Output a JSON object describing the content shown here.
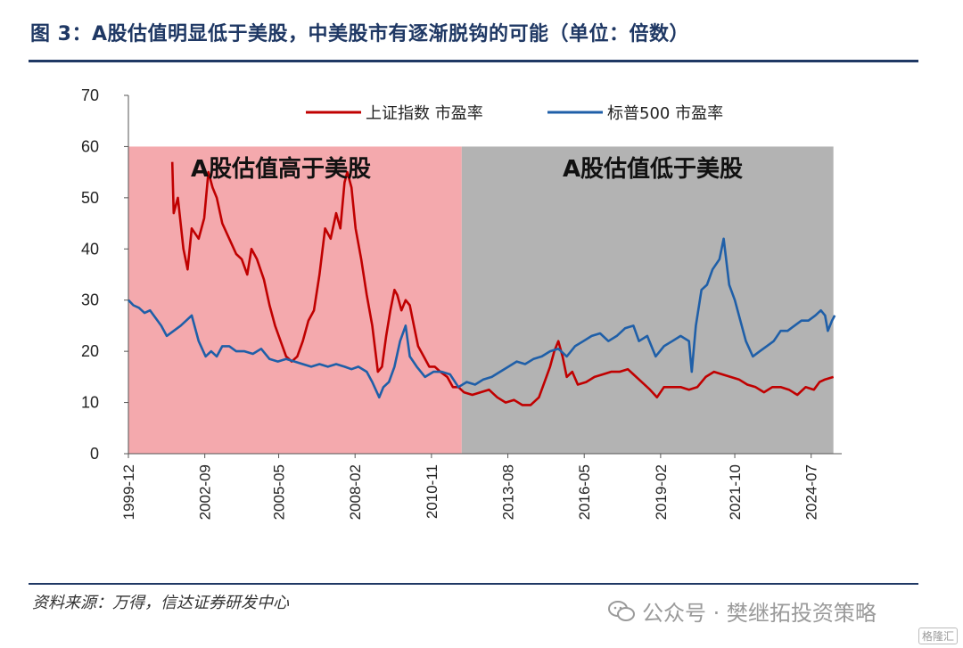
{
  "header": {
    "title": "图 3：A股估值明显低于美股，中美股市有逐渐脱钩的可能（单位：倍数）"
  },
  "footer": {
    "source": "资料来源：万得，信达证券研发中心",
    "watermark": "公众号 · 樊继拓投资策略",
    "badge": "格隆汇"
  },
  "colors": {
    "shanghai": "#c00000",
    "sp500": "#1f5fa8",
    "region_high": "#f4a9ad",
    "region_low": "#b3b3b3",
    "brand": "#1f3864"
  },
  "chart_data": {
    "type": "line",
    "ylim": [
      0,
      70
    ],
    "y_ticks": [
      "0",
      "10",
      "20",
      "30",
      "40",
      "50",
      "60",
      "70"
    ],
    "x_range": [
      1999.92,
      2025.6
    ],
    "x_ticks": [
      {
        "label": "1999-12",
        "x": 1999.92
      },
      {
        "label": "2002-09",
        "x": 2002.67
      },
      {
        "label": "2005-05",
        "x": 2005.33
      },
      {
        "label": "2008-02",
        "x": 2008.08
      },
      {
        "label": "2010-11",
        "x": 2010.83
      },
      {
        "label": "2013-08",
        "x": 2013.58
      },
      {
        "label": "2016-05",
        "x": 2016.33
      },
      {
        "label": "2019-02",
        "x": 2019.08
      },
      {
        "label": "2021-10",
        "x": 2021.75
      },
      {
        "label": "2024-07",
        "x": 2024.5
      }
    ],
    "regions": [
      {
        "label": "A股估值高于美股",
        "x_start": 1999.92,
        "x_end": 2011.92,
        "y_top": 60
      },
      {
        "label": "A股估值低于美股",
        "x_start": 2011.92,
        "x_end": 2025.3,
        "y_top": 60
      }
    ],
    "series": [
      {
        "name": "上证指数 市盈率",
        "color_key": "shanghai",
        "points": [
          [
            2001.5,
            57
          ],
          [
            2001.55,
            47
          ],
          [
            2001.7,
            50
          ],
          [
            2001.9,
            40
          ],
          [
            2002.05,
            36
          ],
          [
            2002.2,
            44
          ],
          [
            2002.45,
            42
          ],
          [
            2002.65,
            46
          ],
          [
            2002.8,
            55
          ],
          [
            2002.95,
            52
          ],
          [
            2003.1,
            50
          ],
          [
            2003.3,
            45
          ],
          [
            2003.55,
            42
          ],
          [
            2003.8,
            39
          ],
          [
            2004.0,
            38
          ],
          [
            2004.2,
            35
          ],
          [
            2004.35,
            40
          ],
          [
            2004.55,
            38
          ],
          [
            2004.8,
            34
          ],
          [
            2005.0,
            29
          ],
          [
            2005.2,
            25
          ],
          [
            2005.4,
            22
          ],
          [
            2005.6,
            19
          ],
          [
            2005.8,
            18
          ],
          [
            2006.0,
            19
          ],
          [
            2006.2,
            22
          ],
          [
            2006.4,
            26
          ],
          [
            2006.6,
            28
          ],
          [
            2006.8,
            35
          ],
          [
            2007.0,
            44
          ],
          [
            2007.2,
            42
          ],
          [
            2007.4,
            47
          ],
          [
            2007.55,
            44
          ],
          [
            2007.7,
            53
          ],
          [
            2007.8,
            55
          ],
          [
            2007.95,
            52
          ],
          [
            2008.1,
            44
          ],
          [
            2008.3,
            38
          ],
          [
            2008.5,
            31
          ],
          [
            2008.7,
            25
          ],
          [
            2008.9,
            16
          ],
          [
            2009.05,
            17
          ],
          [
            2009.2,
            23
          ],
          [
            2009.35,
            28
          ],
          [
            2009.5,
            32
          ],
          [
            2009.6,
            31
          ],
          [
            2009.75,
            28
          ],
          [
            2009.9,
            30
          ],
          [
            2010.05,
            29
          ],
          [
            2010.2,
            25
          ],
          [
            2010.35,
            21
          ],
          [
            2010.55,
            19
          ],
          [
            2010.75,
            17
          ],
          [
            2010.95,
            17
          ],
          [
            2011.15,
            16
          ],
          [
            2011.4,
            15
          ],
          [
            2011.6,
            13
          ],
          [
            2011.8,
            13
          ],
          [
            2012.0,
            12
          ],
          [
            2012.3,
            11.5
          ],
          [
            2012.6,
            12
          ],
          [
            2012.9,
            12.5
          ],
          [
            2013.2,
            11
          ],
          [
            2013.5,
            10
          ],
          [
            2013.8,
            10.5
          ],
          [
            2014.1,
            9.5
          ],
          [
            2014.4,
            9.5
          ],
          [
            2014.7,
            11
          ],
          [
            2014.9,
            14
          ],
          [
            2015.1,
            17
          ],
          [
            2015.25,
            20
          ],
          [
            2015.4,
            22
          ],
          [
            2015.55,
            19
          ],
          [
            2015.7,
            15
          ],
          [
            2015.9,
            16
          ],
          [
            2016.1,
            13.5
          ],
          [
            2016.4,
            14
          ],
          [
            2016.7,
            15
          ],
          [
            2017.0,
            15.5
          ],
          [
            2017.3,
            16
          ],
          [
            2017.6,
            16
          ],
          [
            2017.9,
            16.5
          ],
          [
            2018.1,
            15.5
          ],
          [
            2018.4,
            14
          ],
          [
            2018.7,
            12.5
          ],
          [
            2018.95,
            11
          ],
          [
            2019.2,
            13
          ],
          [
            2019.5,
            13
          ],
          [
            2019.8,
            13
          ],
          [
            2020.1,
            12.5
          ],
          [
            2020.4,
            13
          ],
          [
            2020.7,
            15
          ],
          [
            2021.0,
            16
          ],
          [
            2021.3,
            15.5
          ],
          [
            2021.6,
            15
          ],
          [
            2021.9,
            14.5
          ],
          [
            2022.2,
            13.5
          ],
          [
            2022.5,
            13
          ],
          [
            2022.8,
            12
          ],
          [
            2023.1,
            13
          ],
          [
            2023.4,
            13
          ],
          [
            2023.7,
            12.5
          ],
          [
            2024.0,
            11.5
          ],
          [
            2024.3,
            13
          ],
          [
            2024.6,
            12.5
          ],
          [
            2024.8,
            14
          ],
          [
            2025.0,
            14.5
          ],
          [
            2025.3,
            15
          ]
        ]
      },
      {
        "name": "标普500 市盈率",
        "color_key": "sp500",
        "points": [
          [
            1999.92,
            30
          ],
          [
            2000.1,
            29
          ],
          [
            2000.3,
            28.5
          ],
          [
            2000.5,
            27.5
          ],
          [
            2000.7,
            28
          ],
          [
            2000.9,
            26.5
          ],
          [
            2001.1,
            25
          ],
          [
            2001.3,
            23
          ],
          [
            2001.55,
            24
          ],
          [
            2001.8,
            25
          ],
          [
            2002.0,
            26
          ],
          [
            2002.2,
            27
          ],
          [
            2002.45,
            22
          ],
          [
            2002.7,
            19
          ],
          [
            2002.9,
            20
          ],
          [
            2003.1,
            19
          ],
          [
            2003.3,
            21
          ],
          [
            2003.55,
            21
          ],
          [
            2003.8,
            20
          ],
          [
            2004.1,
            20
          ],
          [
            2004.4,
            19.5
          ],
          [
            2004.7,
            20.5
          ],
          [
            2005.0,
            18.5
          ],
          [
            2005.3,
            18
          ],
          [
            2005.6,
            18.5
          ],
          [
            2005.9,
            18
          ],
          [
            2006.2,
            17.5
          ],
          [
            2006.5,
            17
          ],
          [
            2006.8,
            17.5
          ],
          [
            2007.1,
            17
          ],
          [
            2007.4,
            17.5
          ],
          [
            2007.7,
            17
          ],
          [
            2007.95,
            16.5
          ],
          [
            2008.2,
            17
          ],
          [
            2008.5,
            16
          ],
          [
            2008.7,
            14
          ],
          [
            2008.95,
            11
          ],
          [
            2009.1,
            13
          ],
          [
            2009.3,
            14
          ],
          [
            2009.5,
            17
          ],
          [
            2009.7,
            22
          ],
          [
            2009.9,
            25
          ],
          [
            2010.05,
            19
          ],
          [
            2010.3,
            17
          ],
          [
            2010.6,
            15
          ],
          [
            2010.9,
            16
          ],
          [
            2011.2,
            16
          ],
          [
            2011.5,
            15.5
          ],
          [
            2011.8,
            13
          ],
          [
            2012.1,
            14
          ],
          [
            2012.4,
            13.5
          ],
          [
            2012.7,
            14.5
          ],
          [
            2013.0,
            15
          ],
          [
            2013.3,
            16
          ],
          [
            2013.6,
            17
          ],
          [
            2013.9,
            18
          ],
          [
            2014.2,
            17.5
          ],
          [
            2014.5,
            18.5
          ],
          [
            2014.8,
            19
          ],
          [
            2015.1,
            20
          ],
          [
            2015.4,
            20.5
          ],
          [
            2015.7,
            19
          ],
          [
            2016.0,
            21
          ],
          [
            2016.3,
            22
          ],
          [
            2016.6,
            23
          ],
          [
            2016.9,
            23.5
          ],
          [
            2017.2,
            22
          ],
          [
            2017.5,
            23
          ],
          [
            2017.8,
            24.5
          ],
          [
            2018.1,
            25
          ],
          [
            2018.3,
            22
          ],
          [
            2018.6,
            23
          ],
          [
            2018.9,
            19
          ],
          [
            2019.2,
            21
          ],
          [
            2019.5,
            22
          ],
          [
            2019.8,
            23
          ],
          [
            2020.1,
            22
          ],
          [
            2020.2,
            16
          ],
          [
            2020.35,
            25
          ],
          [
            2020.55,
            32
          ],
          [
            2020.75,
            33
          ],
          [
            2020.95,
            36
          ],
          [
            2021.2,
            38
          ],
          [
            2021.35,
            42
          ],
          [
            2021.55,
            33
          ],
          [
            2021.75,
            30
          ],
          [
            2021.95,
            26
          ],
          [
            2022.15,
            22
          ],
          [
            2022.4,
            19
          ],
          [
            2022.65,
            20
          ],
          [
            2022.9,
            21
          ],
          [
            2023.15,
            22
          ],
          [
            2023.4,
            24
          ],
          [
            2023.65,
            24
          ],
          [
            2023.9,
            25
          ],
          [
            2024.15,
            26
          ],
          [
            2024.4,
            26
          ],
          [
            2024.65,
            27
          ],
          [
            2024.85,
            28
          ],
          [
            2025.0,
            27
          ],
          [
            2025.1,
            24
          ],
          [
            2025.25,
            26
          ],
          [
            2025.35,
            27
          ]
        ]
      }
    ]
  }
}
